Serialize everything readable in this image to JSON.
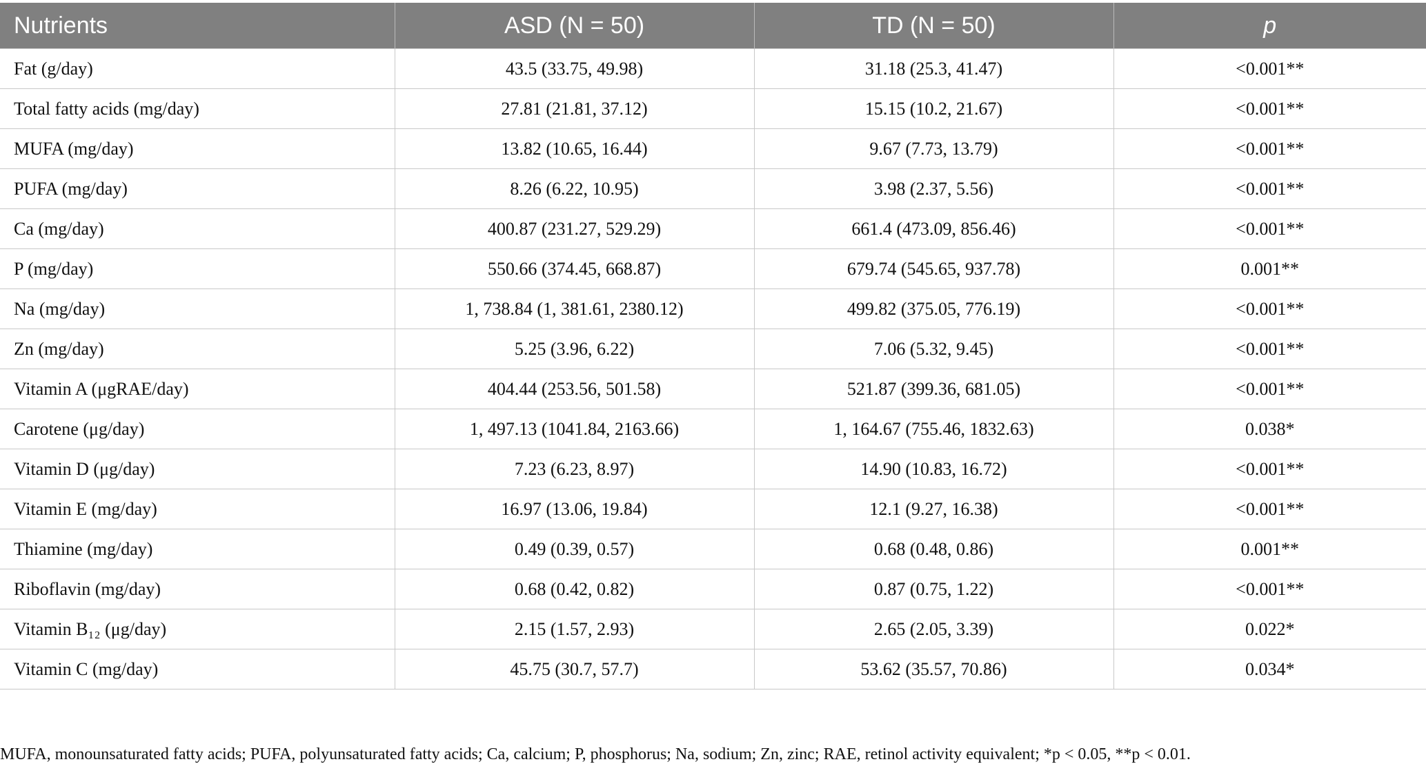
{
  "table": {
    "header": [
      "Nutrients",
      "ASD (N = 50)",
      "TD (N = 50)",
      "p"
    ],
    "rows": [
      [
        "Fat (g/day)",
        "43.5 (33.75, 49.98)",
        "31.18 (25.3, 41.47)",
        "<0.001**"
      ],
      [
        "Total fatty acids (mg/day)",
        "27.81 (21.81, 37.12)",
        "15.15 (10.2, 21.67)",
        "<0.001**"
      ],
      [
        "MUFA (mg/day)",
        "13.82 (10.65, 16.44)",
        "9.67 (7.73, 13.79)",
        "<0.001**"
      ],
      [
        "PUFA (mg/day)",
        "8.26 (6.22, 10.95)",
        "3.98 (2.37, 5.56)",
        "<0.001**"
      ],
      [
        "Ca (mg/day)",
        "400.87 (231.27, 529.29)",
        "661.4 (473.09, 856.46)",
        "<0.001**"
      ],
      [
        "P (mg/day)",
        "550.66 (374.45, 668.87)",
        "679.74 (545.65, 937.78)",
        "0.001**"
      ],
      [
        "Na (mg/day)",
        "1, 738.84 (1, 381.61, 2380.12)",
        "499.82 (375.05, 776.19)",
        "<0.001**"
      ],
      [
        "Zn (mg/day)",
        "5.25 (3.96, 6.22)",
        "7.06 (5.32, 9.45)",
        "<0.001**"
      ],
      [
        "Vitamin A (μgRAE/day)",
        "404.44 (253.56, 501.58)",
        "521.87 (399.36, 681.05)",
        "<0.001**"
      ],
      [
        "Carotene (μg/day)",
        "1, 497.13 (1041.84, 2163.66)",
        "1, 164.67 (755.46, 1832.63)",
        "0.038*"
      ],
      [
        "Vitamin D (μg/day)",
        "7.23 (6.23, 8.97)",
        "14.90 (10.83, 16.72)",
        "<0.001**"
      ],
      [
        "Vitamin E (mg/day)",
        "16.97 (13.06, 19.84)",
        "12.1 (9.27, 16.38)",
        "<0.001**"
      ],
      [
        "Thiamine (mg/day)",
        "0.49 (0.39, 0.57)",
        "0.68 (0.48, 0.86)",
        "0.001**"
      ],
      [
        "Riboflavin (mg/day)",
        "0.68 (0.42, 0.82)",
        "0.87 (0.75, 1.22)",
        "<0.001**"
      ],
      [
        "Vitamin B₁₂ (μg/day)",
        "2.15 (1.57, 2.93)",
        "2.65 (2.05, 3.39)",
        "0.022*"
      ],
      [
        "Vitamin C (mg/day)",
        "45.75 (30.7, 57.7)",
        "53.62 (35.57, 70.86)",
        "0.034*"
      ]
    ]
  },
  "footnote": "MUFA, monounsaturated fatty acids; PUFA, polyunsaturated fatty acids; Ca, calcium; P, phosphorus; Na, sodium; Zn, zinc; RAE, retinol activity equivalent; *p < 0.05, **p < 0.01."
}
